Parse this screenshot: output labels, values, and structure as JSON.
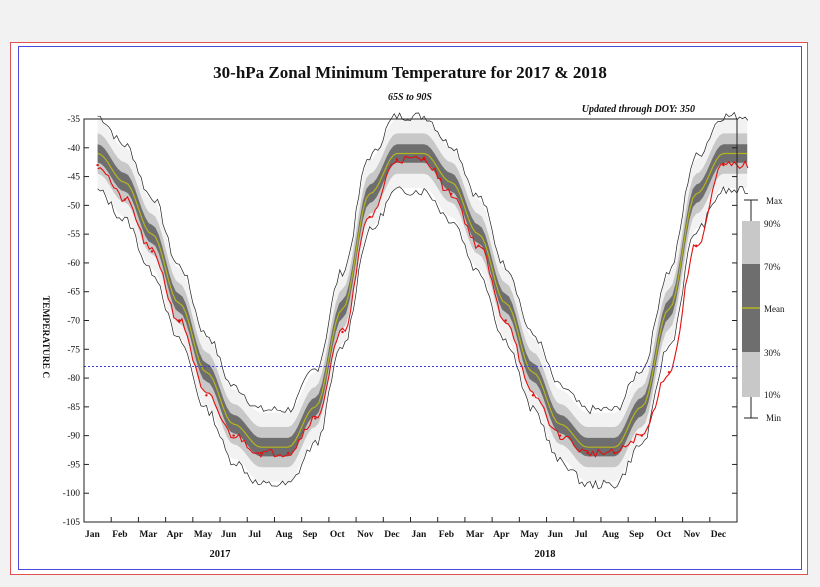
{
  "chart_data": {
    "type": "area",
    "title": "30-hPa Zonal Minimum Temperature for 2017 & 2018",
    "subtitle": "65S to 90S",
    "updated": "Updated through DOY: 350",
    "ylabel": "TEMPERATURE C",
    "ylim": [
      -105,
      -35
    ],
    "yticks": [
      "-35",
      "-40",
      "-45",
      "-50",
      "-55",
      "-60",
      "-65",
      "-70",
      "-75",
      "-80",
      "-85",
      "-90",
      "-95",
      "-100",
      "-105"
    ],
    "x_months": [
      "Jan",
      "Feb",
      "Mar",
      "Apr",
      "May",
      "Jun",
      "Jul",
      "Aug",
      "Sep",
      "Oct",
      "Nov",
      "Dec",
      "Jan",
      "Feb",
      "Mar",
      "Apr",
      "May",
      "Jun",
      "Jul",
      "Aug",
      "Sep",
      "Oct",
      "Nov",
      "Dec"
    ],
    "years": [
      "2017",
      "2018"
    ],
    "reference_line": -78,
    "legend_labels": {
      "max": "Max",
      "p90": "90%",
      "p70": "70%",
      "mean": "Mean",
      "p30": "30%",
      "p10": "10%",
      "min": "Min"
    },
    "colors": {
      "band_max_min": "#f2f2f2",
      "band_90_10": "#c8c8c8",
      "band_70_30": "#6e6e6e",
      "mean": "#b5b51e",
      "observed": "#e01010",
      "extreme_lines": "#202020",
      "reference": "#3a3ad8"
    },
    "climatology_mean": {
      "months": [
        "Jan",
        "Feb",
        "Mar",
        "Apr",
        "May",
        "Jun",
        "Jul",
        "Aug",
        "Sep",
        "Oct",
        "Nov",
        "Dec"
      ],
      "values": [
        -41,
        -46,
        -55,
        -67,
        -79,
        -88,
        -92,
        -92,
        -85,
        -68,
        -48,
        -41
      ]
    },
    "observed_2017_monthly": [
      -43,
      -49,
      -58,
      -70,
      -83,
      -90,
      -93,
      -93,
      -87,
      -72,
      -52,
      -42
    ],
    "observed_2018_monthly": [
      -42,
      -48,
      -57,
      -70,
      -83,
      -90,
      -93,
      -93,
      -90,
      -79,
      -57,
      -43
    ]
  }
}
